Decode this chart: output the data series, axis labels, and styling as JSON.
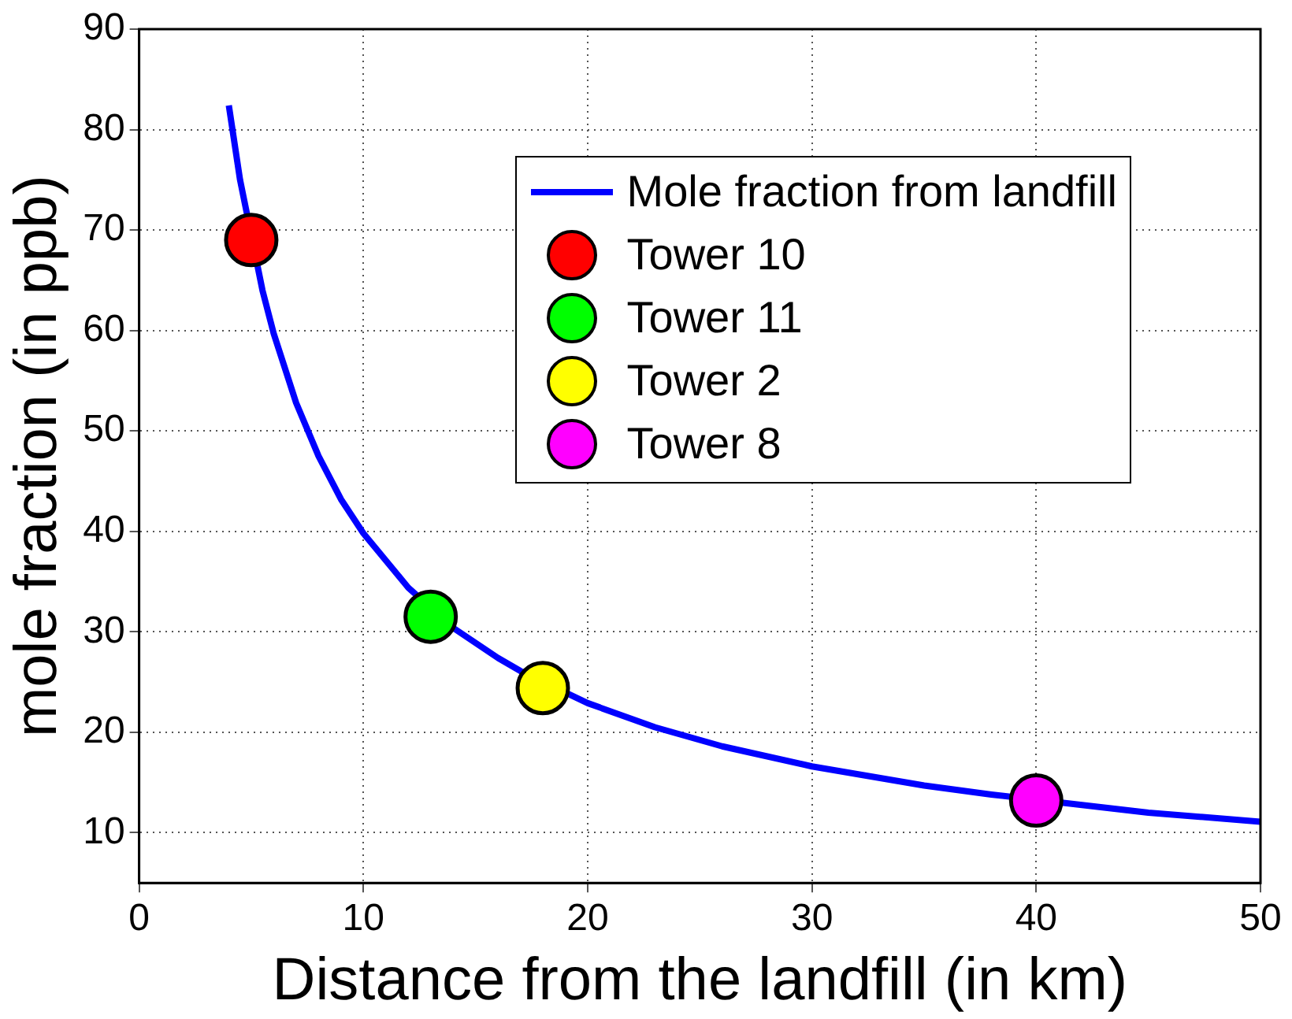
{
  "chart_data": {
    "type": "line",
    "xlabel": "Distance from the landfill (in km)",
    "ylabel": "mole fraction (in ppb)",
    "xlim": [
      0,
      50
    ],
    "xticks": [
      0,
      10,
      20,
      30,
      40,
      50
    ],
    "ylim": [
      5,
      90
    ],
    "yticks": [
      10,
      20,
      30,
      40,
      50,
      60,
      70,
      80,
      90
    ],
    "grid": true,
    "legend": "top right",
    "line_style": "solid",
    "marker": "circle",
    "series": [
      {
        "name": "Mole fraction from landfill",
        "color": "#0000ff",
        "marker": "none",
        "x": [
          4,
          4.5,
          5.5,
          6,
          7,
          8,
          9,
          10,
          12,
          14,
          16,
          17,
          20,
          23,
          26,
          30,
          35,
          38,
          45,
          50
        ],
        "values": [
          82.4,
          75.0,
          64.0,
          59.7,
          52.8,
          47.5,
          43.2,
          39.8,
          34.4,
          30.4,
          27.4,
          26.1,
          22.9,
          20.5,
          18.6,
          16.6,
          14.7,
          13.8,
          12.0,
          11.1
        ]
      },
      {
        "name": "Tower 10",
        "type": "scatter",
        "color": "#ff0000",
        "x": [
          5
        ],
        "values": [
          69
        ]
      },
      {
        "name": "Tower 11",
        "type": "scatter",
        "color": "#00ff00",
        "x": [
          13
        ],
        "values": [
          31.5
        ]
      },
      {
        "name": "Tower 2",
        "type": "scatter",
        "color": "#ffff00",
        "x": [
          18
        ],
        "values": [
          24.4
        ]
      },
      {
        "name": "Tower 8",
        "type": "scatter",
        "color": "#ff00ff",
        "x": [
          40
        ],
        "values": [
          13.2
        ]
      }
    ]
  }
}
